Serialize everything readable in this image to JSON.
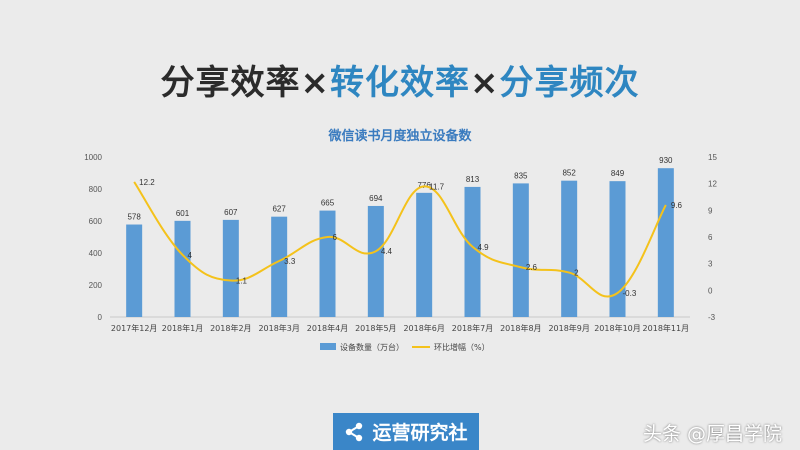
{
  "headline": {
    "part1": "分享效率",
    "sep1": "×",
    "part2": "转化效率",
    "sep2": "×",
    "part3": "分享频次"
  },
  "colors": {
    "bar": "#5b9bd5",
    "line": "#f4c21b",
    "headline_dark": "#2b2b2b",
    "headline_blue": "#2e86c1"
  },
  "chart_data": {
    "type": "bar",
    "title": "微信读书月度独立设备数",
    "categories": [
      "2017年12月",
      "2018年1月",
      "2018年2月",
      "2018年3月",
      "2018年4月",
      "2018年5月",
      "2018年6月",
      "2018年7月",
      "2018年8月",
      "2018年9月",
      "2018年10月",
      "2018年11月"
    ],
    "series": [
      {
        "name": "设备数量（万台）",
        "type": "bar",
        "axis": "left",
        "values": [
          578,
          601,
          607,
          627,
          665,
          694,
          776,
          813,
          835,
          852,
          849,
          930
        ]
      },
      {
        "name": "环比增幅（%）",
        "type": "line",
        "axis": "right",
        "values": [
          12.2,
          4,
          1.1,
          3.3,
          6,
          4.4,
          11.7,
          4.9,
          2.6,
          2,
          -0.3,
          9.6
        ]
      }
    ],
    "ylim_left": [
      0,
      1000
    ],
    "yticks_left": [
      0,
      200,
      400,
      600,
      800,
      1000
    ],
    "ylim_right": [
      -3,
      15
    ],
    "yticks_right": [
      -3,
      0,
      3,
      6,
      9,
      12,
      15
    ],
    "line_labels": [
      "12.2",
      "4",
      "1.1",
      "3.3",
      "6",
      "4.4",
      "11.7",
      "4.9",
      "2.6",
      "2",
      "-0.3",
      "9.6"
    ],
    "legend_position": "bottom",
    "grid": false
  },
  "badge": {
    "icon": "share-icon",
    "label": "运营研究社"
  },
  "watermark": "头条 @厚昌学院"
}
